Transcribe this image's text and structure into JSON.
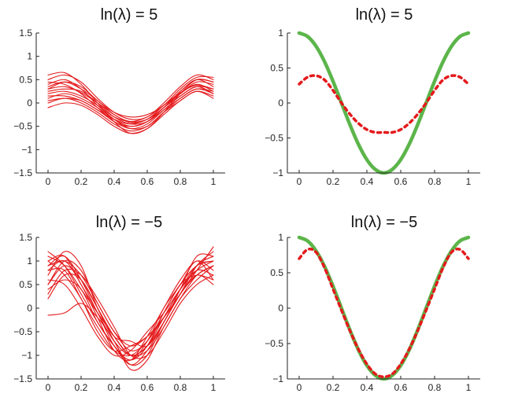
{
  "chart_data": [
    {
      "type": "line",
      "title": "ln(λ) = 5",
      "xlim": [
        0,
        1
      ],
      "ylim": [
        -1.5,
        1.5
      ],
      "xticks": [
        "0",
        "0.2",
        "0.4",
        "0.6",
        "0.8",
        "1"
      ],
      "yticks": [
        "-1.5",
        "-1",
        "-0.5",
        "0",
        "0.5",
        "1",
        "1.5"
      ],
      "color": "#e41a1c",
      "series": [
        {
          "x": [
            0,
            0.1,
            0.2,
            0.3,
            0.4,
            0.5,
            0.6,
            0.7,
            0.8,
            0.9,
            1
          ],
          "y": [
            0.3,
            0.35,
            0.22,
            0.0,
            -0.25,
            -0.42,
            -0.35,
            -0.05,
            0.22,
            0.38,
            0.3
          ]
        },
        {
          "x": [
            0,
            0.1,
            0.2,
            0.3,
            0.4,
            0.5,
            0.6,
            0.7,
            0.8,
            0.9,
            1
          ],
          "y": [
            0.1,
            0.2,
            0.1,
            -0.1,
            -0.35,
            -0.5,
            -0.4,
            -0.1,
            0.15,
            0.35,
            0.2
          ]
        },
        {
          "x": [
            0,
            0.1,
            0.2,
            0.3,
            0.4,
            0.5,
            0.6,
            0.7,
            0.8,
            0.9,
            1
          ],
          "y": [
            0.5,
            0.6,
            0.45,
            0.1,
            -0.2,
            -0.35,
            -0.3,
            0.0,
            0.35,
            0.6,
            0.5
          ]
        },
        {
          "x": [
            0,
            0.1,
            0.2,
            0.3,
            0.4,
            0.5,
            0.6,
            0.7,
            0.8,
            0.9,
            1
          ],
          "y": [
            0.0,
            0.1,
            0.0,
            -0.2,
            -0.45,
            -0.6,
            -0.5,
            -0.2,
            0.05,
            0.25,
            0.1
          ]
        },
        {
          "x": [
            0,
            0.1,
            0.2,
            0.3,
            0.4,
            0.5,
            0.6,
            0.7,
            0.8,
            0.9,
            1
          ],
          "y": [
            0.4,
            0.5,
            0.3,
            -0.05,
            -0.35,
            -0.55,
            -0.5,
            -0.2,
            0.1,
            0.3,
            0.2
          ]
        },
        {
          "x": [
            0,
            0.1,
            0.2,
            0.3,
            0.4,
            0.5,
            0.6,
            0.7,
            0.8,
            0.9,
            1
          ],
          "y": [
            0.2,
            0.25,
            0.15,
            -0.05,
            -0.3,
            -0.4,
            -0.3,
            -0.05,
            0.2,
            0.45,
            0.4
          ]
        },
        {
          "x": [
            0,
            0.1,
            0.2,
            0.3,
            0.4,
            0.5,
            0.6,
            0.7,
            0.8,
            0.9,
            1
          ],
          "y": [
            0.6,
            0.65,
            0.4,
            0.0,
            -0.4,
            -0.65,
            -0.55,
            -0.2,
            0.2,
            0.5,
            0.45
          ]
        },
        {
          "x": [
            0,
            0.1,
            0.2,
            0.3,
            0.4,
            0.5,
            0.6,
            0.7,
            0.8,
            0.9,
            1
          ],
          "y": [
            -0.1,
            0.0,
            -0.05,
            -0.25,
            -0.5,
            -0.65,
            -0.55,
            -0.25,
            0.05,
            0.25,
            0.15
          ]
        },
        {
          "x": [
            0,
            0.1,
            0.2,
            0.3,
            0.4,
            0.5,
            0.6,
            0.7,
            0.8,
            0.9,
            1
          ],
          "y": [
            0.3,
            0.45,
            0.35,
            0.05,
            -0.2,
            -0.3,
            -0.25,
            -0.05,
            0.3,
            0.55,
            0.55
          ]
        },
        {
          "x": [
            0,
            0.1,
            0.2,
            0.3,
            0.4,
            0.5,
            0.6,
            0.7,
            0.8,
            0.9,
            1
          ],
          "y": [
            0.15,
            0.15,
            0.05,
            -0.15,
            -0.4,
            -0.55,
            -0.45,
            -0.15,
            0.15,
            0.35,
            0.3
          ]
        },
        {
          "x": [
            0,
            0.1,
            0.2,
            0.3,
            0.4,
            0.5,
            0.6,
            0.7,
            0.8,
            0.9,
            1
          ],
          "y": [
            0.45,
            0.4,
            0.2,
            -0.1,
            -0.4,
            -0.5,
            -0.4,
            -0.1,
            0.25,
            0.5,
            0.35
          ]
        },
        {
          "x": [
            0,
            0.1,
            0.2,
            0.3,
            0.4,
            0.5,
            0.6,
            0.7,
            0.8,
            0.9,
            1
          ],
          "y": [
            0.25,
            0.3,
            0.25,
            0.0,
            -0.3,
            -0.45,
            -0.4,
            -0.15,
            0.1,
            0.3,
            0.25
          ]
        },
        {
          "x": [
            0,
            0.1,
            0.2,
            0.3,
            0.4,
            0.5,
            0.6,
            0.7,
            0.8,
            0.9,
            1
          ],
          "y": [
            0.05,
            0.1,
            0.05,
            -0.15,
            -0.35,
            -0.45,
            -0.35,
            -0.1,
            0.2,
            0.4,
            0.25
          ]
        },
        {
          "x": [
            0,
            0.1,
            0.2,
            0.3,
            0.4,
            0.5,
            0.6,
            0.7,
            0.8,
            0.9,
            1
          ],
          "y": [
            0.35,
            0.45,
            0.3,
            0.05,
            -0.25,
            -0.4,
            -0.35,
            -0.1,
            0.25,
            0.5,
            0.45
          ]
        }
      ]
    },
    {
      "type": "line",
      "title": "ln(λ) = 5",
      "xlim": [
        0,
        1
      ],
      "ylim": [
        -1,
        1
      ],
      "xticks": [
        "0",
        "0.2",
        "0.4",
        "0.6",
        "0.8",
        "1"
      ],
      "yticks": [
        "-1",
        "-0.5",
        "0",
        "0.5",
        "1"
      ],
      "series": [
        {
          "style": "solid",
          "color": "#5cb54a",
          "x": [
            0,
            0.05,
            0.1,
            0.15,
            0.2,
            0.25,
            0.3,
            0.35,
            0.4,
            0.45,
            0.5,
            0.55,
            0.6,
            0.65,
            0.7,
            0.75,
            0.8,
            0.85,
            0.9,
            0.95,
            1
          ],
          "y": [
            1.0,
            0.95,
            0.81,
            0.59,
            0.31,
            0.0,
            -0.31,
            -0.59,
            -0.81,
            -0.95,
            -1.0,
            -0.95,
            -0.81,
            -0.59,
            -0.31,
            0.0,
            0.31,
            0.59,
            0.81,
            0.95,
            1.0
          ]
        },
        {
          "style": "dotted",
          "color": "#e41a1c",
          "x": [
            0,
            0.05,
            0.1,
            0.15,
            0.2,
            0.25,
            0.3,
            0.35,
            0.4,
            0.45,
            0.5,
            0.55,
            0.6,
            0.65,
            0.7,
            0.75,
            0.8,
            0.85,
            0.9,
            0.95,
            1
          ],
          "y": [
            0.27,
            0.37,
            0.39,
            0.33,
            0.18,
            0.0,
            -0.16,
            -0.29,
            -0.38,
            -0.42,
            -0.42,
            -0.42,
            -0.38,
            -0.29,
            -0.16,
            0.0,
            0.18,
            0.33,
            0.39,
            0.37,
            0.27
          ]
        }
      ]
    },
    {
      "type": "line",
      "title": "ln(λ) = −5",
      "xlim": [
        0,
        1
      ],
      "ylim": [
        -1.5,
        1.5
      ],
      "xticks": [
        "0",
        "0.2",
        "0.4",
        "0.6",
        "0.8",
        "1"
      ],
      "yticks": [
        "-1.5",
        "-1",
        "-0.5",
        "0",
        "0.5",
        "1",
        "1.5"
      ],
      "color": "#e41a1c",
      "series": [
        {
          "x": [
            0,
            0.1,
            0.2,
            0.3,
            0.4,
            0.5,
            0.6,
            0.7,
            0.8,
            0.9,
            1
          ],
          "y": [
            0.9,
            1.1,
            0.6,
            -0.1,
            -0.7,
            -1.0,
            -0.8,
            -0.2,
            0.4,
            0.9,
            1.0
          ]
        },
        {
          "x": [
            0,
            0.1,
            0.2,
            0.3,
            0.4,
            0.5,
            0.6,
            0.7,
            0.8,
            0.9,
            1
          ],
          "y": [
            1.2,
            0.9,
            0.3,
            -0.3,
            -0.8,
            -1.2,
            -0.9,
            -0.3,
            0.3,
            0.8,
            1.3
          ]
        },
        {
          "x": [
            0,
            0.1,
            0.2,
            0.3,
            0.4,
            0.5,
            0.6,
            0.7,
            0.8,
            0.9,
            1
          ],
          "y": [
            0.5,
            1.0,
            0.8,
            0.1,
            -0.5,
            -0.9,
            -0.7,
            -0.1,
            0.5,
            0.7,
            0.6
          ]
        },
        {
          "x": [
            0,
            0.1,
            0.2,
            0.3,
            0.4,
            0.5,
            0.6,
            0.7,
            0.8,
            0.9,
            1
          ],
          "y": [
            -0.15,
            -0.1,
            0.1,
            -0.2,
            -0.7,
            -1.3,
            -1.1,
            -0.4,
            0.2,
            0.7,
            0.9
          ]
        },
        {
          "x": [
            0,
            0.1,
            0.2,
            0.3,
            0.4,
            0.5,
            0.6,
            0.7,
            0.8,
            0.9,
            1
          ],
          "y": [
            0.8,
            1.0,
            0.5,
            -0.2,
            -0.9,
            -1.1,
            -0.6,
            0.0,
            0.6,
            1.0,
            0.8
          ]
        },
        {
          "x": [
            0,
            0.1,
            0.2,
            0.3,
            0.4,
            0.5,
            0.6,
            0.7,
            0.8,
            0.9,
            1
          ],
          "y": [
            1.0,
            0.7,
            0.2,
            -0.5,
            -0.9,
            -0.8,
            -0.6,
            -0.2,
            0.3,
            0.9,
            1.2
          ]
        },
        {
          "x": [
            0,
            0.1,
            0.2,
            0.3,
            0.4,
            0.5,
            0.6,
            0.7,
            0.8,
            0.9,
            1
          ],
          "y": [
            0.3,
            0.8,
            0.7,
            0.2,
            -0.4,
            -1.0,
            -1.0,
            -0.5,
            0.1,
            0.5,
            0.7
          ]
        },
        {
          "x": [
            0,
            0.1,
            0.2,
            0.3,
            0.4,
            0.5,
            0.6,
            0.7,
            0.8,
            0.9,
            1
          ],
          "y": [
            0.7,
            1.2,
            0.9,
            0.0,
            -0.6,
            -0.7,
            -0.8,
            -0.3,
            0.4,
            1.1,
            1.1
          ]
        },
        {
          "x": [
            0,
            0.1,
            0.2,
            0.3,
            0.4,
            0.5,
            0.6,
            0.7,
            0.8,
            0.9,
            1
          ],
          "y": [
            1.1,
            0.9,
            0.4,
            -0.1,
            -0.6,
            -1.0,
            -0.9,
            -0.4,
            0.2,
            0.6,
            0.9
          ]
        },
        {
          "x": [
            0,
            0.1,
            0.2,
            0.3,
            0.4,
            0.5,
            0.6,
            0.7,
            0.8,
            0.9,
            1
          ],
          "y": [
            0.4,
            0.6,
            0.4,
            -0.3,
            -0.8,
            -1.1,
            -0.7,
            0.0,
            0.5,
            1.0,
            0.6
          ]
        },
        {
          "x": [
            0,
            0.1,
            0.2,
            0.3,
            0.4,
            0.5,
            0.6,
            0.7,
            0.8,
            0.9,
            1
          ],
          "y": [
            0.6,
            0.5,
            0.0,
            -0.6,
            -1.0,
            -0.9,
            -0.5,
            -0.1,
            0.4,
            0.8,
            1.0
          ]
        },
        {
          "x": [
            0,
            0.1,
            0.2,
            0.3,
            0.4,
            0.5,
            0.6,
            0.7,
            0.8,
            0.9,
            1
          ],
          "y": [
            0.9,
            1.0,
            0.7,
            0.1,
            -0.5,
            -0.8,
            -0.6,
            -0.2,
            0.3,
            0.7,
            0.5
          ]
        },
        {
          "x": [
            0,
            0.1,
            0.2,
            0.3,
            0.4,
            0.5,
            0.6,
            0.7,
            0.8,
            0.9,
            1
          ],
          "y": [
            0.2,
            0.7,
            0.6,
            0.0,
            -0.7,
            -1.2,
            -1.0,
            -0.3,
            0.3,
            0.9,
            1.1
          ]
        },
        {
          "x": [
            0,
            0.1,
            0.2,
            0.3,
            0.4,
            0.5,
            0.6,
            0.7,
            0.8,
            0.9,
            1
          ],
          "y": [
            0.8,
            0.8,
            0.2,
            -0.4,
            -0.9,
            -1.0,
            -0.7,
            -0.2,
            0.4,
            0.8,
            0.7
          ]
        },
        {
          "x": [
            0,
            0.1,
            0.2,
            0.3,
            0.4,
            0.5,
            0.6,
            0.7,
            0.8,
            0.9,
            1
          ],
          "y": [
            1.0,
            1.1,
            0.5,
            -0.1,
            -0.8,
            -1.1,
            -0.8,
            -0.1,
            0.5,
            0.9,
            1.0
          ]
        },
        {
          "x": [
            0,
            0.1,
            0.2,
            0.3,
            0.4,
            0.5,
            0.6,
            0.7,
            0.8,
            0.9,
            1
          ],
          "y": [
            0.5,
            0.9,
            0.6,
            0.0,
            -0.6,
            -1.0,
            -0.8,
            -0.3,
            0.3,
            0.7,
            0.9
          ]
        }
      ]
    },
    {
      "type": "line",
      "title": "ln(λ) = −5",
      "xlim": [
        0,
        1
      ],
      "ylim": [
        -1,
        1
      ],
      "xticks": [
        "0",
        "0.2",
        "0.4",
        "0.6",
        "0.8",
        "1"
      ],
      "yticks": [
        "-1",
        "-0.5",
        "0",
        "0.5",
        "1"
      ],
      "series": [
        {
          "style": "solid",
          "color": "#5cb54a",
          "x": [
            0,
            0.05,
            0.1,
            0.15,
            0.2,
            0.25,
            0.3,
            0.35,
            0.4,
            0.45,
            0.5,
            0.55,
            0.6,
            0.65,
            0.7,
            0.75,
            0.8,
            0.85,
            0.9,
            0.95,
            1
          ],
          "y": [
            1.0,
            0.95,
            0.81,
            0.59,
            0.31,
            0.0,
            -0.31,
            -0.59,
            -0.81,
            -0.95,
            -1.0,
            -0.95,
            -0.81,
            -0.59,
            -0.31,
            0.0,
            0.31,
            0.59,
            0.81,
            0.95,
            1.0
          ]
        },
        {
          "style": "dotted",
          "color": "#e41a1c",
          "x": [
            0,
            0.05,
            0.1,
            0.15,
            0.2,
            0.25,
            0.3,
            0.35,
            0.4,
            0.45,
            0.5,
            0.55,
            0.6,
            0.65,
            0.7,
            0.75,
            0.8,
            0.85,
            0.9,
            0.95,
            1
          ],
          "y": [
            0.7,
            0.83,
            0.79,
            0.57,
            0.27,
            -0.03,
            -0.32,
            -0.58,
            -0.79,
            -0.93,
            -0.97,
            -0.93,
            -0.79,
            -0.58,
            -0.32,
            -0.03,
            0.27,
            0.57,
            0.79,
            0.83,
            0.7
          ]
        }
      ]
    }
  ]
}
